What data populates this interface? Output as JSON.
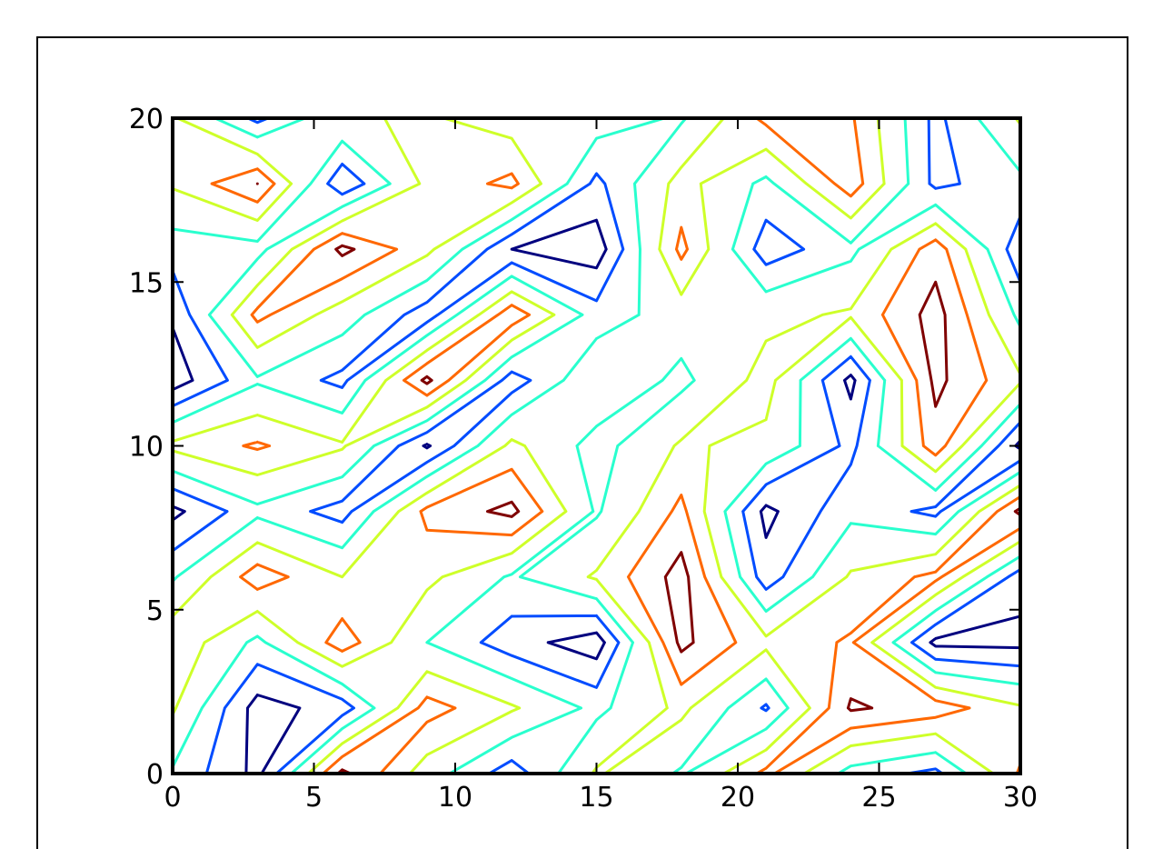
{
  "chart_data": {
    "type": "contour",
    "x": [
      0,
      3,
      6,
      9,
      12,
      15,
      18,
      21,
      24,
      27,
      30
    ],
    "y": [
      0,
      2,
      4,
      6,
      8,
      10,
      12,
      14,
      16,
      18,
      20
    ],
    "z": [
      [
        -0.5,
        -2,
        2,
        0,
        -1.5,
        0.5,
        -0.5,
        1.3,
        -0.7,
        -1.3,
        1.2
      ],
      [
        0.5,
        -2.1,
        -1.5,
        1.4,
        0.5,
        -0.6,
        0.6,
        -1.2,
        1.9,
        1.5,
        0.5
      ],
      [
        1,
        -0.6,
        1.5,
        -0.4,
        -1.5,
        -2.2,
        2,
        0.6,
        1.2,
        -2,
        -2
      ],
      [
        -0.5,
        1.5,
        0.4,
        0.6,
        -0.5,
        0.5,
        2.1,
        -1.5,
        0.5,
        1.3,
        -1.5
      ],
      [
        -2,
        -0.6,
        -1.4,
        1.3,
        2,
        -0.5,
        1.3,
        -2,
        -0.6,
        -1.3,
        2
      ],
      [
        0.6,
        1.2,
        0.5,
        -1.9,
        0.6,
        -0.7,
        0.5,
        0.2,
        -1.3,
        1.5,
        -2
      ],
      [
        -2.2,
        -0.5,
        -1.3,
        2,
        -1.5,
        0.3,
        -0.6,
        0.7,
        -2,
        2,
        0.5
      ],
      [
        -1.7,
        1.3,
        0,
        -1.5,
        1.6,
        -0.8,
        0,
        0.2,
        0.5,
        2.1,
        -0.6
      ],
      [
        -0.8,
        -0.7,
        2,
        0.6,
        -1.8,
        -2.2,
        1.3,
        -1.5,
        -0.6,
        1.5,
        -1.6
      ],
      [
        0.5,
        1.8,
        -1.7,
        0.6,
        1.3,
        -1.3,
        0.7,
        -0.6,
        1.5,
        -1.3,
        -0.6
      ],
      [
        0.5,
        -1.3,
        0.3,
        0.5,
        0,
        0,
        -0.5,
        1.3,
        1.2,
        -1.3,
        0.5
      ]
    ],
    "levels": [
      -1.8,
      -1.1,
      -0.4,
      0.4,
      1.1,
      1.8
    ],
    "colors": [
      "#00007f",
      "#004cff",
      "#29ffce",
      "#ceff29",
      "#ff6800",
      "#7f0000"
    ],
    "xlim": [
      0,
      30
    ],
    "ylim": [
      0,
      20
    ],
    "xticks": [
      0,
      5,
      10,
      15,
      20,
      25,
      30
    ],
    "yticks": [
      0,
      5,
      10,
      15,
      20
    ]
  }
}
